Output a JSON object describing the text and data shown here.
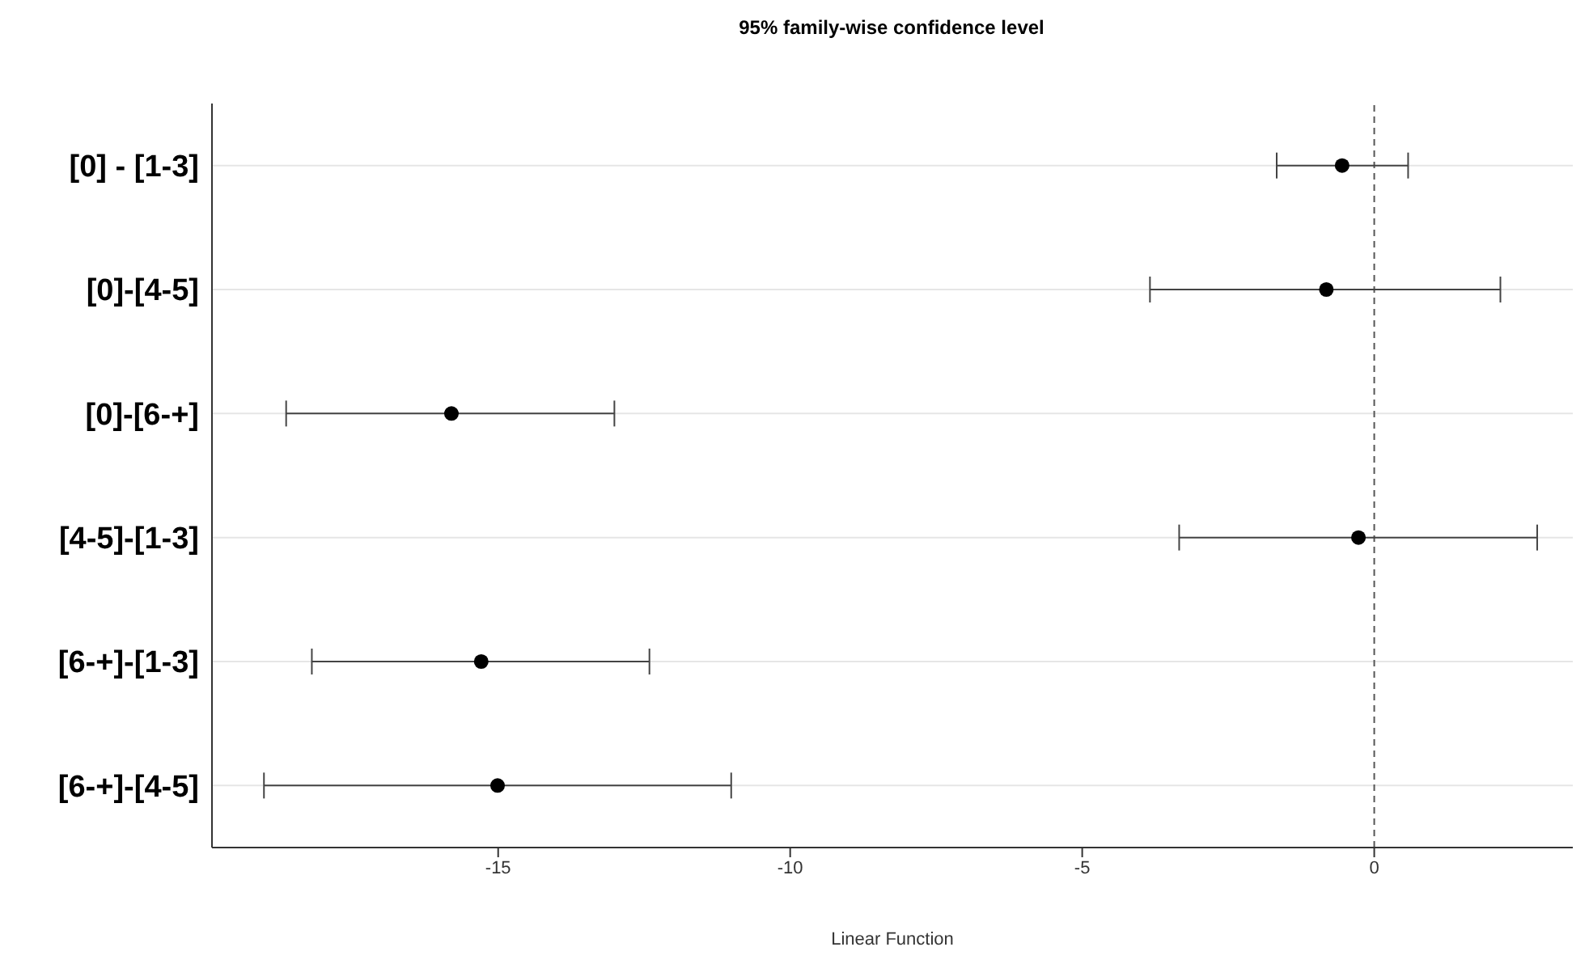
{
  "chart_data": {
    "type": "scatter",
    "orientation": "horizontal",
    "title": "95% family-wise confidence level",
    "xlabel": "Linear Function",
    "categories": [
      "[0] - [1-3]",
      "[0]-[4-5]",
      "[0]-[6-+]",
      "[4-5]-[1-3]",
      "[6-+]-[1-3]",
      "[6-+]-[4-5]"
    ],
    "values": [
      -0.55,
      -0.82,
      -15.8,
      -0.27,
      -15.29,
      -15.01
    ],
    "errors": [
      [
        -1.67,
        0.58
      ],
      [
        -3.84,
        2.16
      ],
      [
        -18.63,
        -13.01
      ],
      [
        -3.34,
        2.79
      ],
      [
        -18.19,
        -12.41
      ],
      [
        -19.01,
        -11.01
      ]
    ],
    "color": "#000000",
    "xlim": [
      -19.9,
      3.4
    ],
    "xticks": [
      -15,
      -10,
      -5,
      0
    ],
    "ref_lines": [
      {
        "axis": "x",
        "value": 0,
        "line_style": "dashed",
        "color": "#555555"
      }
    ],
    "grid": "y",
    "marker": "circle"
  }
}
